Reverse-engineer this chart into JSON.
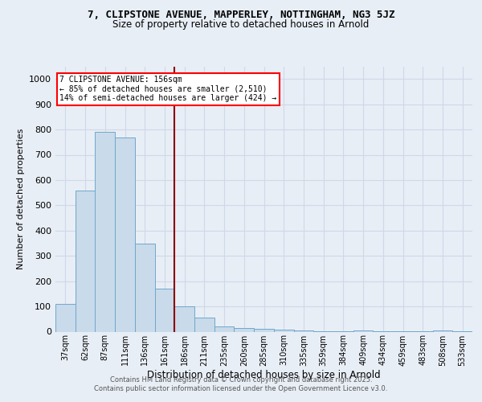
{
  "title": "7, CLIPSTONE AVENUE, MAPPERLEY, NOTTINGHAM, NG3 5JZ",
  "subtitle": "Size of property relative to detached houses in Arnold",
  "xlabel": "Distribution of detached houses by size in Arnold",
  "ylabel": "Number of detached properties",
  "bin_labels": [
    "37sqm",
    "62sqm",
    "87sqm",
    "111sqm",
    "136sqm",
    "161sqm",
    "186sqm",
    "211sqm",
    "235sqm",
    "260sqm",
    "285sqm",
    "310sqm",
    "335sqm",
    "359sqm",
    "384sqm",
    "409sqm",
    "434sqm",
    "459sqm",
    "483sqm",
    "508sqm",
    "533sqm"
  ],
  "bar_heights": [
    110,
    560,
    790,
    770,
    350,
    170,
    100,
    55,
    20,
    15,
    10,
    8,
    5,
    3,
    2,
    5,
    2,
    2,
    2,
    5,
    2
  ],
  "bar_color": "#c9daea",
  "bar_edge_color": "#6fa8cb",
  "grid_color": "#d0d8e8",
  "background_color": "#e8eef6",
  "red_line_x": 5.5,
  "annotation_line1": "7 CLIPSTONE AVENUE: 156sqm",
  "annotation_line2": "← 85% of detached houses are smaller (2,510)",
  "annotation_line3": "14% of semi-detached houses are larger (424) →",
  "footer_text": "Contains HM Land Registry data © Crown copyright and database right 2025.\nContains public sector information licensed under the Open Government Licence v3.0.",
  "ylim": [
    0,
    1050
  ],
  "yticks": [
    0,
    100,
    200,
    300,
    400,
    500,
    600,
    700,
    800,
    900,
    1000
  ]
}
